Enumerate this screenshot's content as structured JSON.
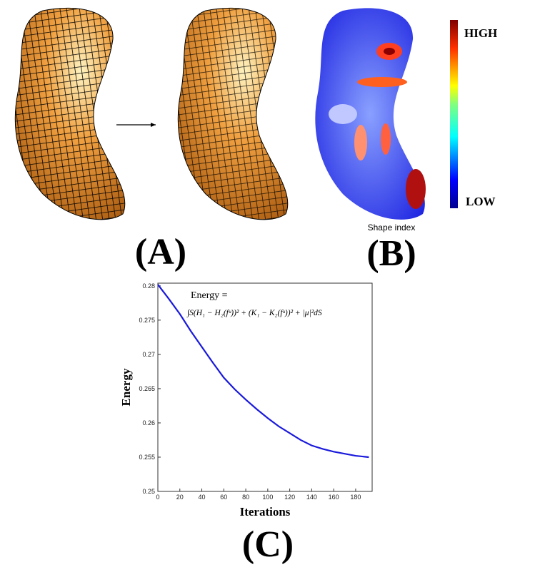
{
  "panels": {
    "a": "(A)",
    "b": "(B)",
    "c": "(C)"
  },
  "colorbar": {
    "high": "HIGH",
    "low": "LOW",
    "caption": "Shape index"
  },
  "chart_data": {
    "type": "line",
    "annotation": {
      "line1": "Energy =",
      "line2": "∫S(H₁ − H₂(fᵘ))² + (K₁ − K₂(fᵘ))² + |μ|²dS"
    },
    "x_label": "Iterations",
    "y_label": "Energy",
    "x": [
      0,
      10,
      20,
      30,
      40,
      50,
      60,
      70,
      80,
      90,
      100,
      110,
      120,
      130,
      140,
      150,
      160,
      170,
      180,
      192
    ],
    "series": [
      {
        "name": "Energy",
        "color": "#1a1adc",
        "values": [
          0.2802,
          0.2781,
          0.2759,
          0.2734,
          0.2711,
          0.2688,
          0.2666,
          0.2649,
          0.2634,
          0.262,
          0.2607,
          0.2595,
          0.2585,
          0.2575,
          0.2567,
          0.2562,
          0.2558,
          0.2555,
          0.2552,
          0.255
        ]
      }
    ],
    "xlim": [
      0,
      195
    ],
    "ylim": [
      0.25,
      0.2804
    ],
    "xticks": [
      0,
      20,
      40,
      60,
      80,
      100,
      120,
      140,
      160,
      180
    ],
    "yticks": [
      0.25,
      0.255,
      0.26,
      0.265,
      0.27,
      0.275,
      0.28
    ]
  }
}
